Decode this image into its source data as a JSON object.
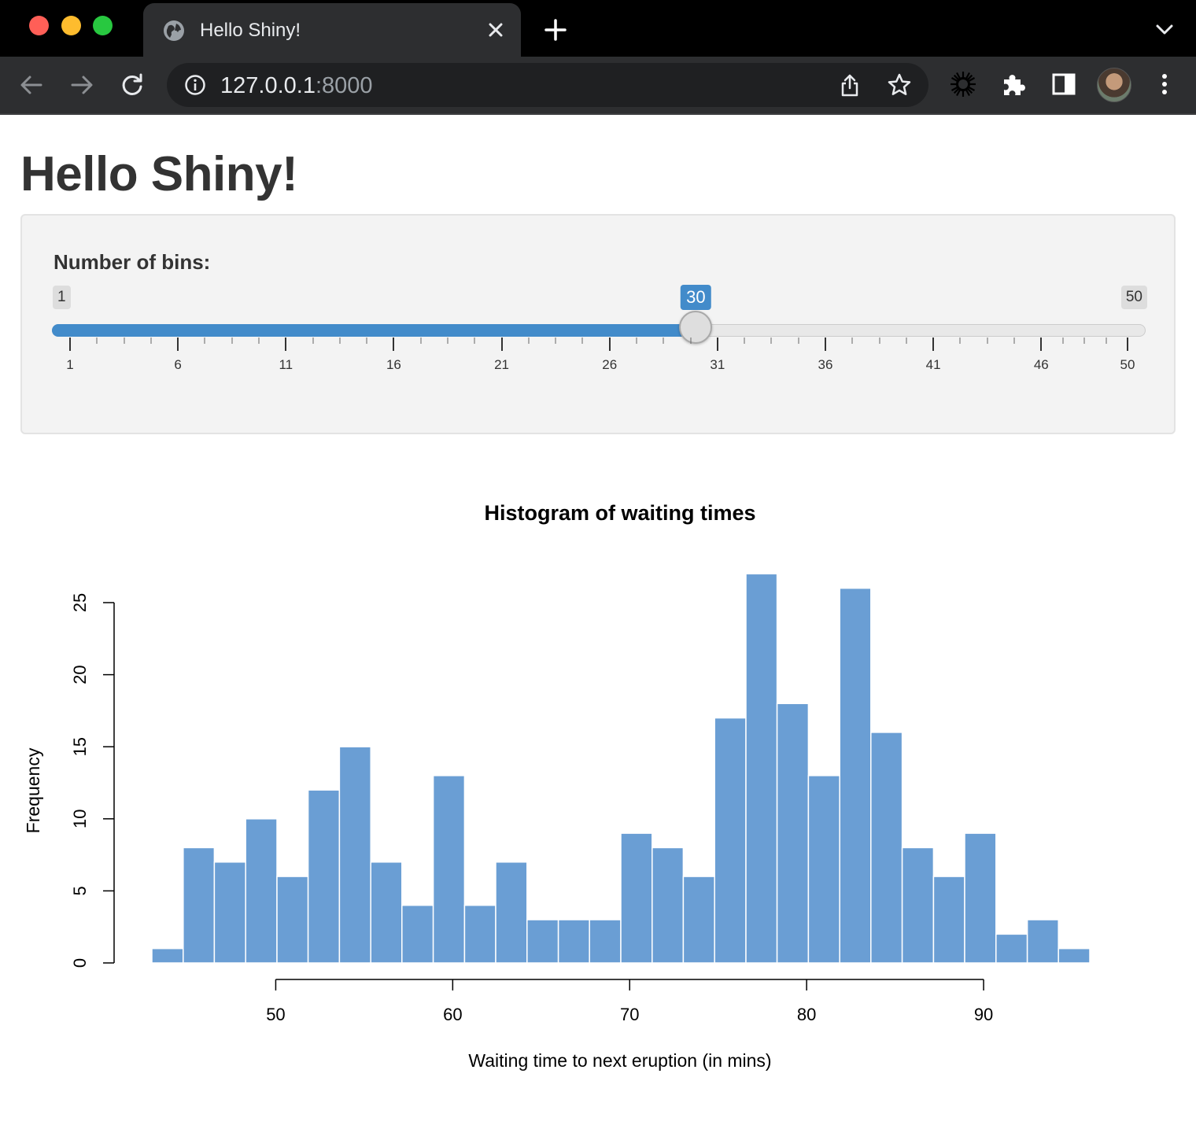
{
  "browser": {
    "tab_title": "Hello Shiny!",
    "url_host": "127.0.0.1",
    "url_port": ":8000"
  },
  "page": {
    "title": "Hello Shiny!"
  },
  "slider": {
    "label": "Number of bins:",
    "min": 1,
    "max": 50,
    "value": 30,
    "min_label": "1",
    "max_label": "50",
    "value_label": "30",
    "grid_labels": [
      "1",
      "6",
      "11",
      "16",
      "21",
      "26",
      "31",
      "36",
      "41",
      "46",
      "50"
    ],
    "colors": {
      "bar": "#428bca"
    }
  },
  "chart_data": {
    "type": "bar",
    "title": "Histogram of waiting times",
    "xlabel": "Waiting time to next eruption (in mins)",
    "ylabel": "Frequency",
    "bin_edges": [
      43.0,
      44.77,
      46.53,
      48.3,
      50.07,
      51.83,
      53.6,
      55.37,
      57.13,
      58.9,
      60.67,
      62.43,
      64.2,
      65.97,
      67.73,
      69.5,
      71.27,
      73.03,
      74.8,
      76.57,
      78.33,
      80.1,
      81.87,
      83.63,
      85.4,
      87.17,
      88.93,
      90.7,
      92.47,
      94.23,
      96.0
    ],
    "values": [
      1,
      8,
      7,
      10,
      6,
      12,
      15,
      7,
      4,
      13,
      4,
      7,
      3,
      3,
      3,
      9,
      8,
      6,
      17,
      27,
      18,
      13,
      26,
      16,
      8,
      6,
      9,
      2,
      3,
      1
    ],
    "xticks": [
      50,
      60,
      70,
      80,
      90
    ],
    "yticks": [
      0,
      5,
      10,
      15,
      20,
      25
    ],
    "xlim": [
      43,
      96
    ],
    "ylim": [
      0,
      25
    ],
    "bar_color": "#6a9ed4",
    "grid": false
  }
}
